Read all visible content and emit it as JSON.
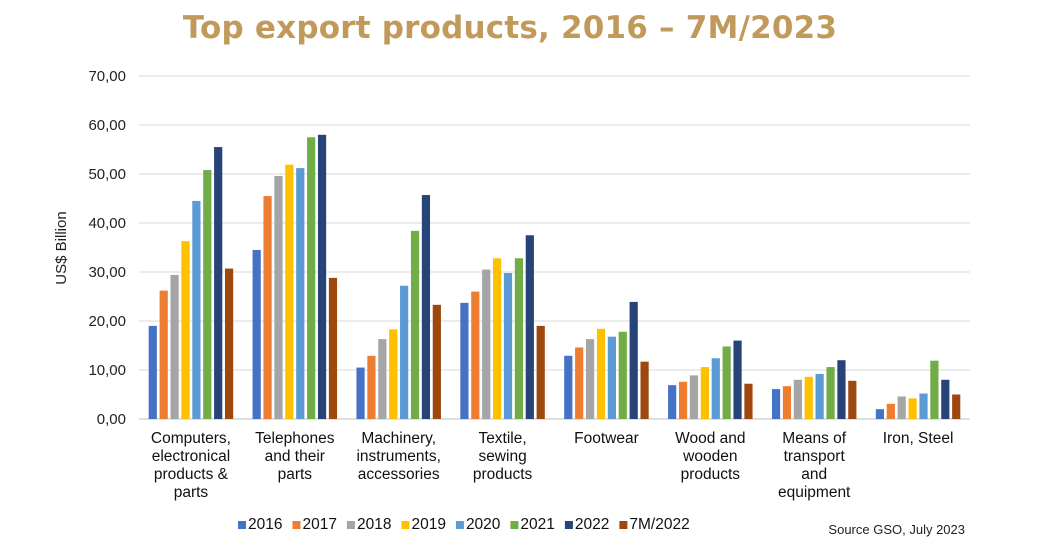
{
  "title": "Top export products, 2016 – 7M/2023",
  "source": "Source GSO, July 2023",
  "colors": {
    "title": "#C19A5B",
    "grid": "#D9D9D9",
    "series": [
      "#4472C4",
      "#ED7D31",
      "#A5A5A5",
      "#FFC000",
      "#5B9BD5",
      "#70AD47",
      "#264478",
      "#9E480E"
    ]
  },
  "chart_data": {
    "type": "bar",
    "title": "Top export products, 2016 – 7M/2023",
    "ylabel": "US$ Billion",
    "xlabel": "",
    "ylim": [
      0,
      70
    ],
    "yticks": [
      "0,00",
      "10,00",
      "20,00",
      "30,00",
      "40,00",
      "50,00",
      "60,00",
      "70,00"
    ],
    "grid": true,
    "legend_position": "bottom",
    "categories": [
      [
        "Computers,",
        "electronical",
        "products &",
        "parts"
      ],
      [
        "Telephones",
        "and their",
        "parts"
      ],
      [
        "Machinery,",
        "instruments,",
        "accessories"
      ],
      [
        "Textile,",
        "sewing",
        "products"
      ],
      [
        "Footwear"
      ],
      [
        "Wood and",
        "wooden",
        "products"
      ],
      [
        "Means of",
        "transport",
        "and",
        "equipment"
      ],
      [
        "Iron, Steel"
      ]
    ],
    "series": [
      {
        "name": "2016",
        "values": [
          19.0,
          34.5,
          10.5,
          23.7,
          12.9,
          6.9,
          6.1,
          2.0
        ]
      },
      {
        "name": "2017",
        "values": [
          26.2,
          45.5,
          12.9,
          26.0,
          14.6,
          7.6,
          6.7,
          3.1
        ]
      },
      {
        "name": "2018",
        "values": [
          29.4,
          49.6,
          16.3,
          30.5,
          16.3,
          8.9,
          8.0,
          4.6
        ]
      },
      {
        "name": "2019",
        "values": [
          36.3,
          51.9,
          18.3,
          32.8,
          18.4,
          10.6,
          8.6,
          4.2
        ]
      },
      {
        "name": "2020",
        "values": [
          44.5,
          51.2,
          27.2,
          29.8,
          16.8,
          12.4,
          9.2,
          5.2
        ]
      },
      {
        "name": "2021",
        "values": [
          50.8,
          57.5,
          38.4,
          32.8,
          17.8,
          14.8,
          10.6,
          11.9
        ]
      },
      {
        "name": "2022",
        "values": [
          55.5,
          58.0,
          45.7,
          37.5,
          23.9,
          16.0,
          12.0,
          8.0
        ]
      },
      {
        "name": "7M/2022",
        "values": [
          30.7,
          28.8,
          23.3,
          19.0,
          11.7,
          7.2,
          7.8,
          5.0
        ]
      }
    ]
  }
}
